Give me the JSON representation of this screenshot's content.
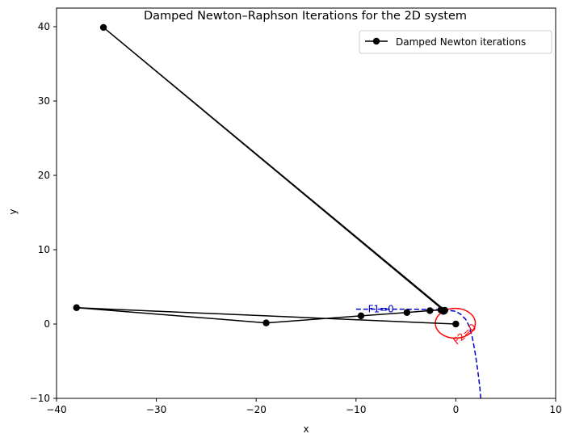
{
  "chart_data": {
    "type": "line",
    "title": "Damped Newton–Raphson Iterations for the 2D system",
    "xlabel": "x",
    "ylabel": "y",
    "xlim": [
      -40,
      10
    ],
    "ylim": [
      -10,
      42.5
    ],
    "xticks": [
      -40,
      -30,
      -20,
      -10,
      0,
      10
    ],
    "yticks": [
      -10,
      0,
      10,
      20,
      30,
      40
    ],
    "grid": false,
    "legend": {
      "position": "top-right",
      "label": "Damped Newton iterations"
    },
    "series": [
      {
        "name": "Damped Newton iterations",
        "color": "#000000",
        "marker": "circle",
        "x": [
          0.0,
          -38.0,
          -19.0,
          -9.5,
          -4.9,
          -2.6,
          -1.5,
          -1.1,
          -35.3,
          -1.15,
          -1.25
        ],
        "y": [
          0.0,
          2.2,
          0.15,
          1.1,
          1.55,
          1.8,
          1.9,
          1.85,
          39.9,
          1.75,
          1.7
        ]
      }
    ],
    "contours": [
      {
        "label": "F1=0",
        "color": "#0000cc",
        "style": "dashed",
        "x": [
          -10.0,
          -8.0,
          -6.0,
          -4.0,
          -2.0,
          -1.0,
          0.0,
          0.5,
          1.0,
          1.3,
          1.6,
          1.8,
          2.0,
          2.2,
          2.4,
          2.5
        ],
        "y": [
          2.0,
          2.0,
          2.0,
          1.98,
          1.95,
          1.9,
          1.7,
          1.3,
          0.6,
          -0.2,
          -1.5,
          -2.8,
          -4.4,
          -6.3,
          -8.5,
          -10.0
        ]
      },
      {
        "label": "F2=0",
        "color": "#ff0000",
        "style": "solid",
        "center": [
          -0.05,
          0.1
        ],
        "radius_x": 2.0,
        "radius_y": 2.0
      }
    ]
  }
}
